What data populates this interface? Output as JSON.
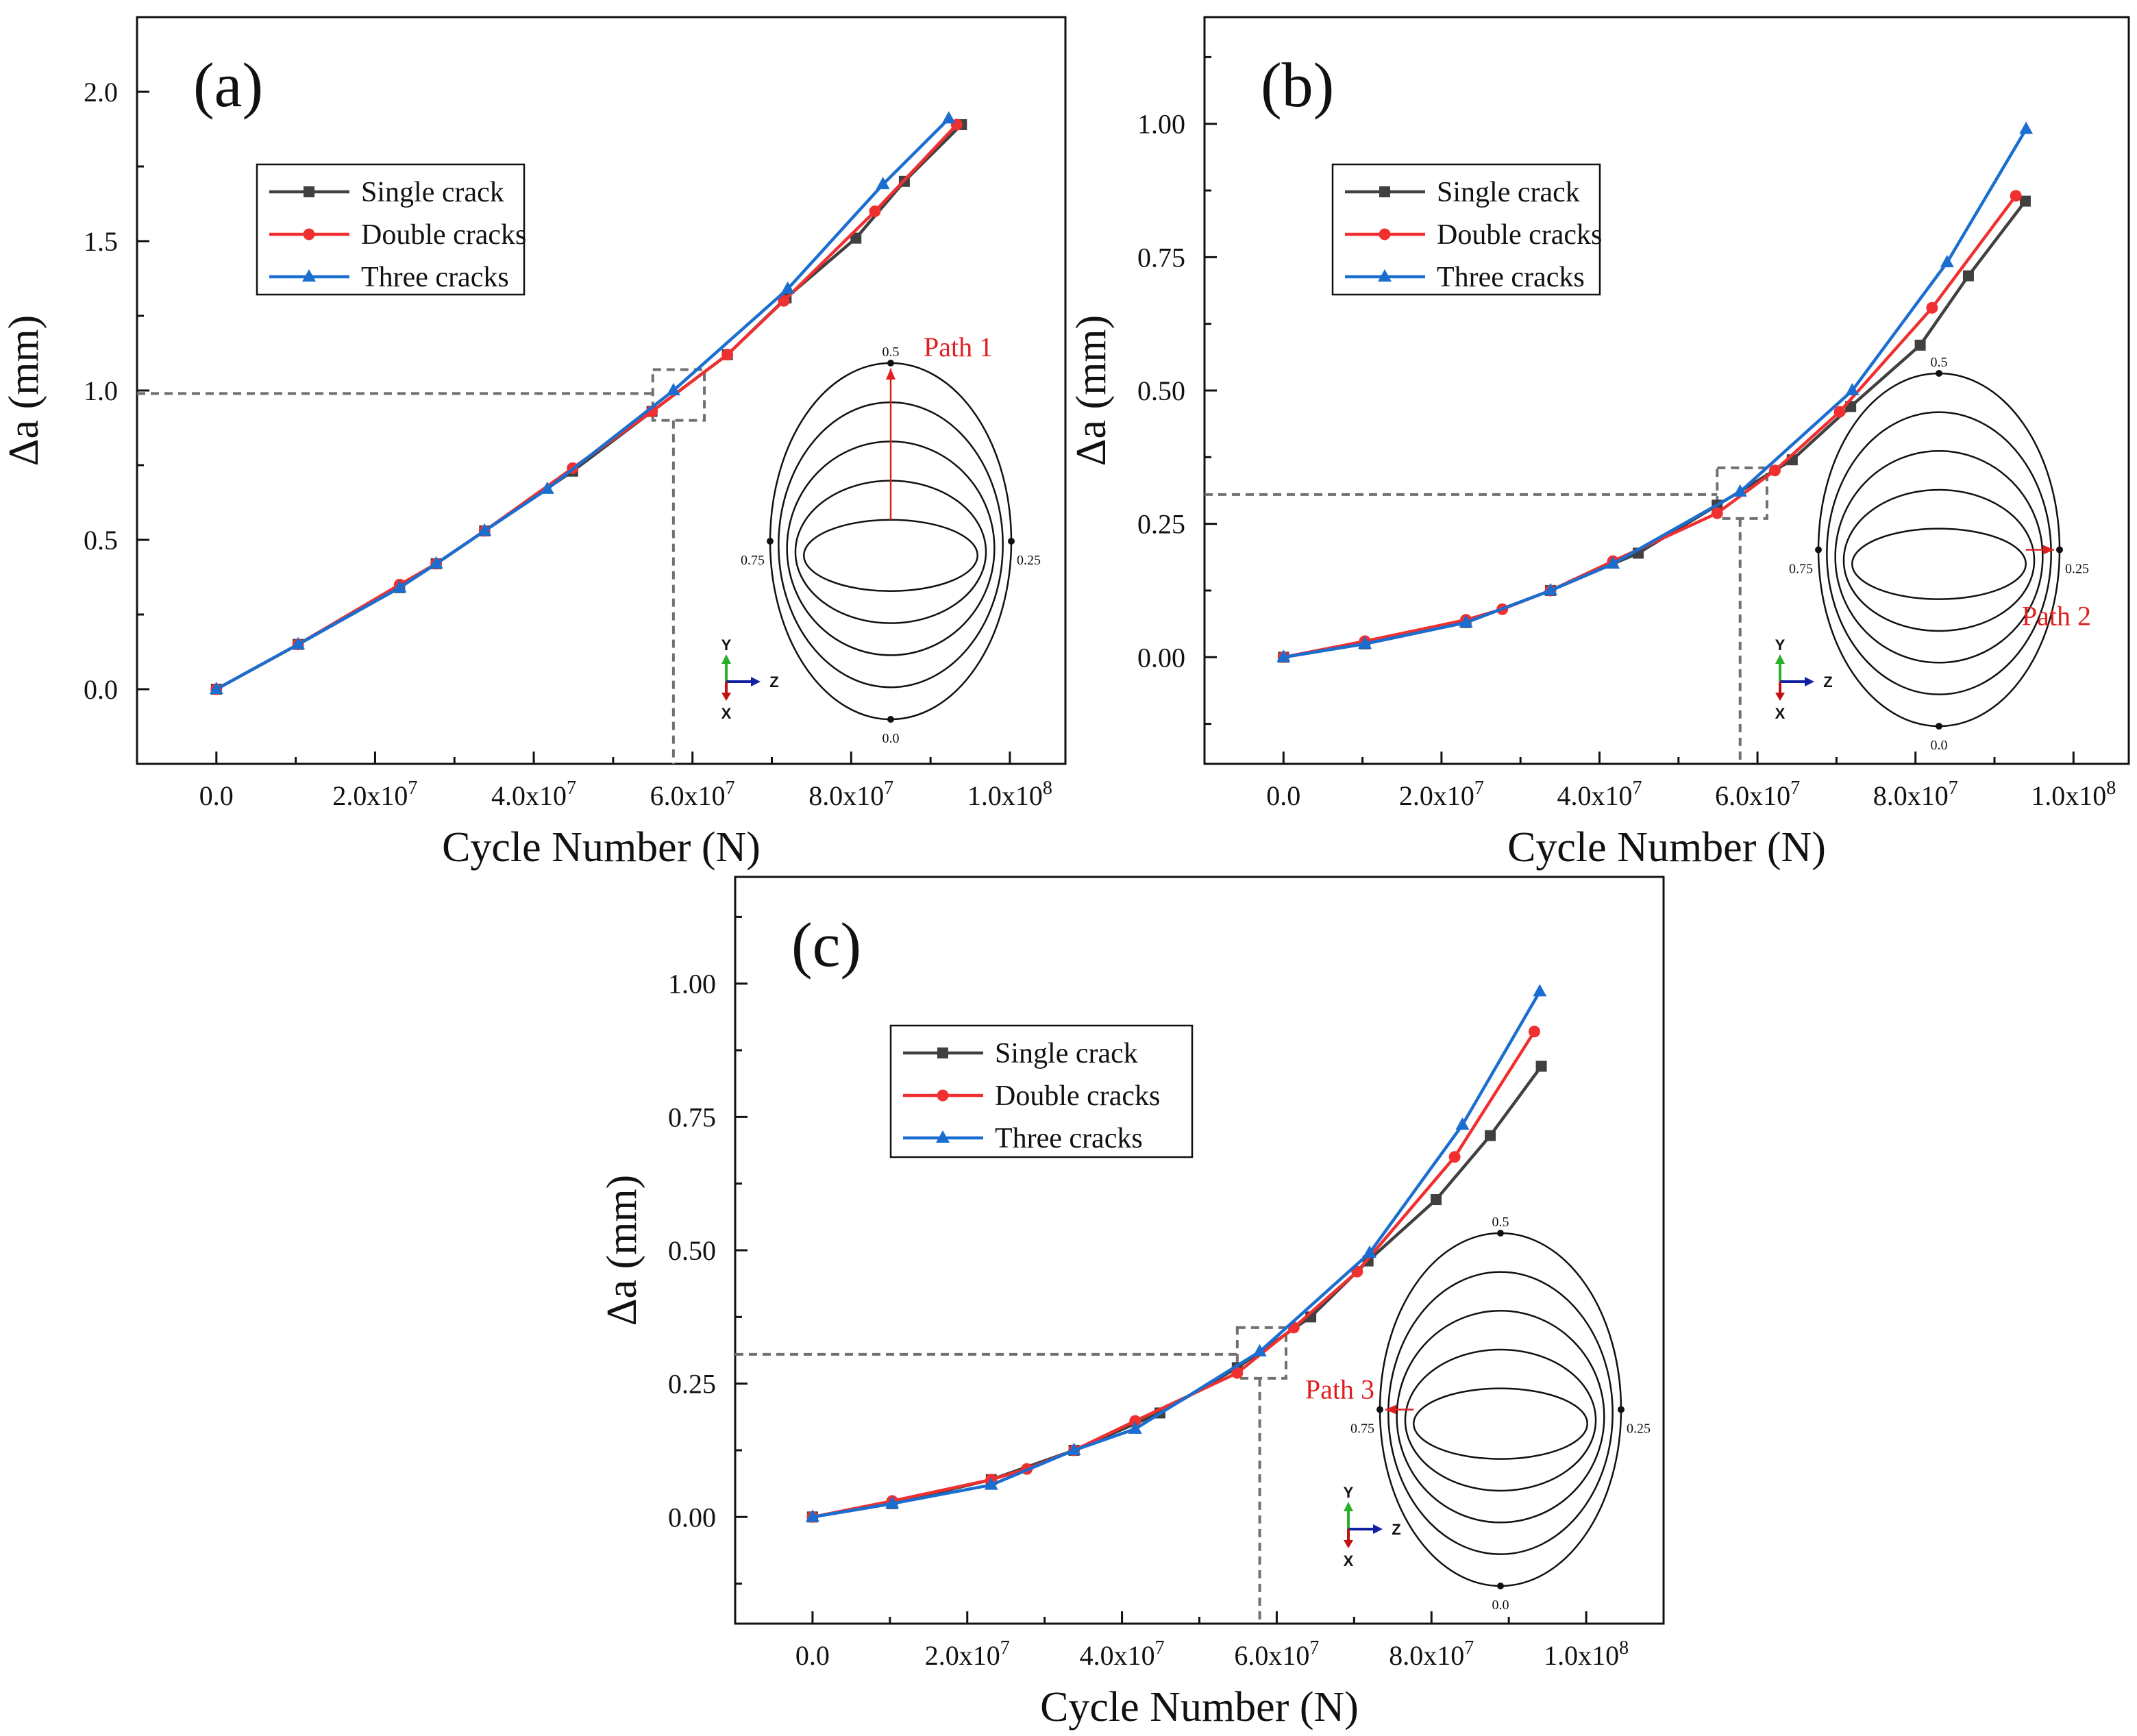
{
  "chart_data": [
    {
      "type": "line",
      "panel_label": "(a)",
      "xlabel": "Cycle Number (N)",
      "ylabel": "Δa (mm)",
      "xlim": [
        -10000000,
        107000000
      ],
      "ylim": [
        -0.25,
        2.25
      ],
      "x_ticks": [
        {
          "value": 0,
          "label": "0.0"
        },
        {
          "value": 20000000,
          "label": "2.0x10",
          "exp": "7"
        },
        {
          "value": 40000000,
          "label": "4.0x10",
          "exp": "7"
        },
        {
          "value": 60000000,
          "label": "6.0x10",
          "exp": "7"
        },
        {
          "value": 80000000,
          "label": "8.0x10",
          "exp": "7"
        },
        {
          "value": 100000000,
          "label": "1.0x10",
          "exp": "8"
        }
      ],
      "y_ticks": [
        {
          "value": 0.0,
          "label": "0.0"
        },
        {
          "value": 0.5,
          "label": "0.5"
        },
        {
          "value": 1.0,
          "label": "1.0"
        },
        {
          "value": 1.5,
          "label": "1.5"
        },
        {
          "value": 2.0,
          "label": "2.0"
        }
      ],
      "legend_position": "upper-left",
      "series": [
        {
          "name": "Single crack",
          "color": "#404040",
          "marker": "square",
          "x": [
            0,
            10300000,
            23100000,
            27700000,
            33800000,
            44900000,
            54900000,
            64400000,
            71800000,
            80600000,
            86700000,
            93900000
          ],
          "y": [
            0.0,
            0.15,
            0.34,
            0.42,
            0.53,
            0.73,
            0.93,
            1.12,
            1.31,
            1.51,
            1.7,
            1.89
          ]
        },
        {
          "name": "Double cracks",
          "color": "#f03030",
          "marker": "circle",
          "x": [
            0,
            10300000,
            23100000,
            27700000,
            33800000,
            44900000,
            54900000,
            64400000,
            71500000,
            83000000,
            93300000
          ],
          "y": [
            0.0,
            0.15,
            0.35,
            0.42,
            0.53,
            0.74,
            0.93,
            1.12,
            1.3,
            1.6,
            1.89
          ]
        },
        {
          "name": "Three cracks",
          "color": "#1a6ed0",
          "marker": "triangle",
          "x": [
            0,
            10300000,
            23100000,
            27700000,
            33800000,
            41700000,
            57600000,
            72000000,
            84000000,
            92300000
          ],
          "y": [
            0.0,
            0.15,
            0.34,
            0.42,
            0.53,
            0.67,
            1.0,
            1.34,
            1.69,
            1.91
          ]
        }
      ],
      "reference": {
        "x": 57600000,
        "y": 0.99,
        "box_x": [
          55000000,
          61500000
        ],
        "box_y": [
          0.9,
          1.07
        ]
      },
      "inset": {
        "path_label": "Path 1",
        "path_angle": "0.5",
        "angle_labels": {
          "top": "0.5",
          "right": "0.25",
          "bottom": "0.0",
          "left": "0.75"
        }
      }
    },
    {
      "type": "line",
      "panel_label": "(b)",
      "xlabel": "Cycle Number (N)",
      "ylabel": "Δa (mm)",
      "xlim": [
        -10000000,
        107000000
      ],
      "ylim": [
        -0.2,
        1.2
      ],
      "x_ticks": [
        {
          "value": 0,
          "label": "0.0"
        },
        {
          "value": 20000000,
          "label": "2.0x10",
          "exp": "7"
        },
        {
          "value": 40000000,
          "label": "4.0x10",
          "exp": "7"
        },
        {
          "value": 60000000,
          "label": "6.0x10",
          "exp": "7"
        },
        {
          "value": 80000000,
          "label": "8.0x10",
          "exp": "7"
        },
        {
          "value": 100000000,
          "label": "1.0x10",
          "exp": "8"
        }
      ],
      "y_ticks": [
        {
          "value": 0.0,
          "label": "0.00"
        },
        {
          "value": 0.25,
          "label": "0.25"
        },
        {
          "value": 0.5,
          "label": "0.50"
        },
        {
          "value": 0.75,
          "label": "0.75"
        },
        {
          "value": 1.0,
          "label": "1.00"
        }
      ],
      "legend_position": "upper-left",
      "series": [
        {
          "name": "Single crack",
          "color": "#404040",
          "marker": "square",
          "x": [
            0,
            10300000,
            23100000,
            33800000,
            44900000,
            54900000,
            64400000,
            71800000,
            80600000,
            86700000,
            93900000
          ],
          "y": [
            0.0,
            0.025,
            0.065,
            0.125,
            0.195,
            0.285,
            0.37,
            0.47,
            0.585,
            0.715,
            0.855
          ]
        },
        {
          "name": "Double cracks",
          "color": "#f03030",
          "marker": "circle",
          "x": [
            0,
            10300000,
            23100000,
            27700000,
            33800000,
            41700000,
            54900000,
            62200000,
            70400000,
            82100000,
            92700000
          ],
          "y": [
            0.0,
            0.03,
            0.07,
            0.09,
            0.125,
            0.18,
            0.27,
            0.35,
            0.46,
            0.655,
            0.865
          ]
        },
        {
          "name": "Three cracks",
          "color": "#1a6ed0",
          "marker": "triangle",
          "x": [
            0,
            10300000,
            23100000,
            33800000,
            41700000,
            57800000,
            72000000,
            84000000,
            94000000
          ],
          "y": [
            0.0,
            0.025,
            0.065,
            0.125,
            0.175,
            0.31,
            0.5,
            0.74,
            0.99
          ]
        }
      ],
      "reference": {
        "x": 57800000,
        "y": 0.305,
        "box_x": [
          54900000,
          61200000
        ],
        "box_y": [
          0.26,
          0.355
        ]
      },
      "inset": {
        "path_label": "Path 2",
        "path_angle": "0.25",
        "angle_labels": {
          "top": "0.5",
          "right": "0.25",
          "bottom": "0.0",
          "left": "0.75"
        }
      }
    },
    {
      "type": "line",
      "panel_label": "(c)",
      "xlabel": "Cycle Number (N)",
      "ylabel": "Δa (mm)",
      "xlim": [
        -10000000,
        110000000
      ],
      "ylim": [
        -0.2,
        1.2
      ],
      "x_ticks": [
        {
          "value": 0,
          "label": "0.0"
        },
        {
          "value": 20000000,
          "label": "2.0x10",
          "exp": "7"
        },
        {
          "value": 40000000,
          "label": "4.0x10",
          "exp": "7"
        },
        {
          "value": 60000000,
          "label": "6.0x10",
          "exp": "7"
        },
        {
          "value": 80000000,
          "label": "8.0x10",
          "exp": "7"
        },
        {
          "value": 100000000,
          "label": "1.0x10",
          "exp": "8"
        }
      ],
      "y_ticks": [
        {
          "value": 0.0,
          "label": "0.00"
        },
        {
          "value": 0.25,
          "label": "0.25"
        },
        {
          "value": 0.5,
          "label": "0.50"
        },
        {
          "value": 0.75,
          "label": "0.75"
        },
        {
          "value": 1.0,
          "label": "1.00"
        }
      ],
      "legend_position": "upper-left",
      "series": [
        {
          "name": "Single crack",
          "color": "#404040",
          "marker": "square",
          "x": [
            0,
            10300000,
            23100000,
            33800000,
            44900000,
            54900000,
            64400000,
            71800000,
            80600000,
            87600000,
            94200000
          ],
          "y": [
            0.0,
            0.025,
            0.07,
            0.125,
            0.195,
            0.28,
            0.375,
            0.48,
            0.595,
            0.715,
            0.845
          ]
        },
        {
          "name": "Double cracks",
          "color": "#f03030",
          "marker": "circle",
          "x": [
            0,
            10300000,
            23100000,
            27700000,
            33800000,
            41700000,
            54900000,
            62200000,
            70400000,
            83000000,
            93300000
          ],
          "y": [
            0.0,
            0.03,
            0.07,
            0.09,
            0.125,
            0.18,
            0.27,
            0.355,
            0.46,
            0.675,
            0.91
          ]
        },
        {
          "name": "Three cracks",
          "color": "#1a6ed0",
          "marker": "triangle",
          "x": [
            0,
            10300000,
            23100000,
            33800000,
            41700000,
            57800000,
            72000000,
            84000000,
            94000000
          ],
          "y": [
            0.0,
            0.025,
            0.06,
            0.125,
            0.165,
            0.31,
            0.495,
            0.735,
            0.985
          ]
        }
      ],
      "reference": {
        "x": 57800000,
        "y": 0.305,
        "box_x": [
          54900000,
          61200000
        ],
        "box_y": [
          0.26,
          0.355
        ]
      },
      "inset": {
        "path_label": "Path 3",
        "path_angle": "0.75",
        "angle_labels": {
          "top": "0.5",
          "right": "0.25",
          "bottom": "0.0",
          "left": "0.75"
        }
      }
    }
  ],
  "axis_triad": {
    "y_label": "Y",
    "z_label": "Z",
    "x_label": "X"
  }
}
